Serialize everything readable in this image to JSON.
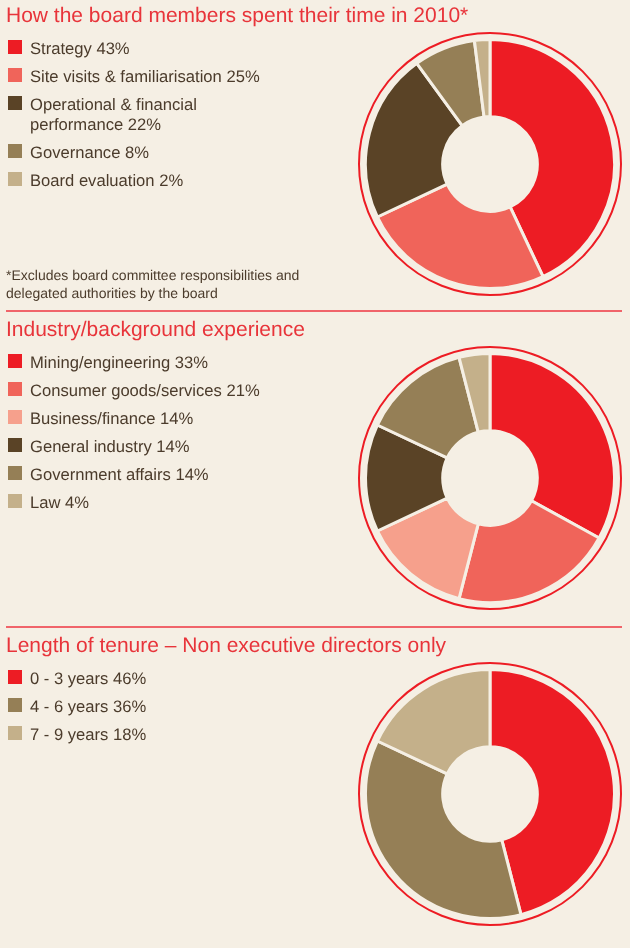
{
  "chart_data": [
    {
      "type": "donut",
      "title": "How the board members spent their time in 2010*",
      "categories": [
        "Strategy 43%",
        "Site visits & familiarisation 25%",
        "Operational & financial performance 22%",
        "Governance 8%",
        "Board evaluation 2%"
      ],
      "values": [
        43,
        25,
        22,
        8,
        2
      ],
      "colors": [
        "#ed1c24",
        "#f0645a",
        "#5a4326",
        "#957f56",
        "#c4b08a"
      ],
      "legend": "left",
      "annotations": [
        "*Excludes board committee responsibilities and delegated authorities by the board"
      ]
    },
    {
      "type": "donut",
      "title": "Industry/background experience",
      "categories": [
        "Mining/engineering 33%",
        "Consumer goods/services 21%",
        "Business/finance 14%",
        "General industry 14%",
        "Government affairs 14%",
        "Law 4%"
      ],
      "values": [
        33,
        21,
        14,
        14,
        14,
        4
      ],
      "colors": [
        "#ed1c24",
        "#f0645a",
        "#f6a08c",
        "#5a4326",
        "#957f56",
        "#c4b08a"
      ],
      "legend": "left"
    },
    {
      "type": "donut",
      "title": "Length of tenure – Non executive directors only",
      "categories": [
        "0 - 3 years 46%",
        "4 - 6 years 36%",
        "7 - 9 years 18%"
      ],
      "values": [
        46,
        36,
        18
      ],
      "colors": [
        "#ed1c24",
        "#957f56",
        "#c4b08a"
      ],
      "legend": "left"
    }
  ]
}
